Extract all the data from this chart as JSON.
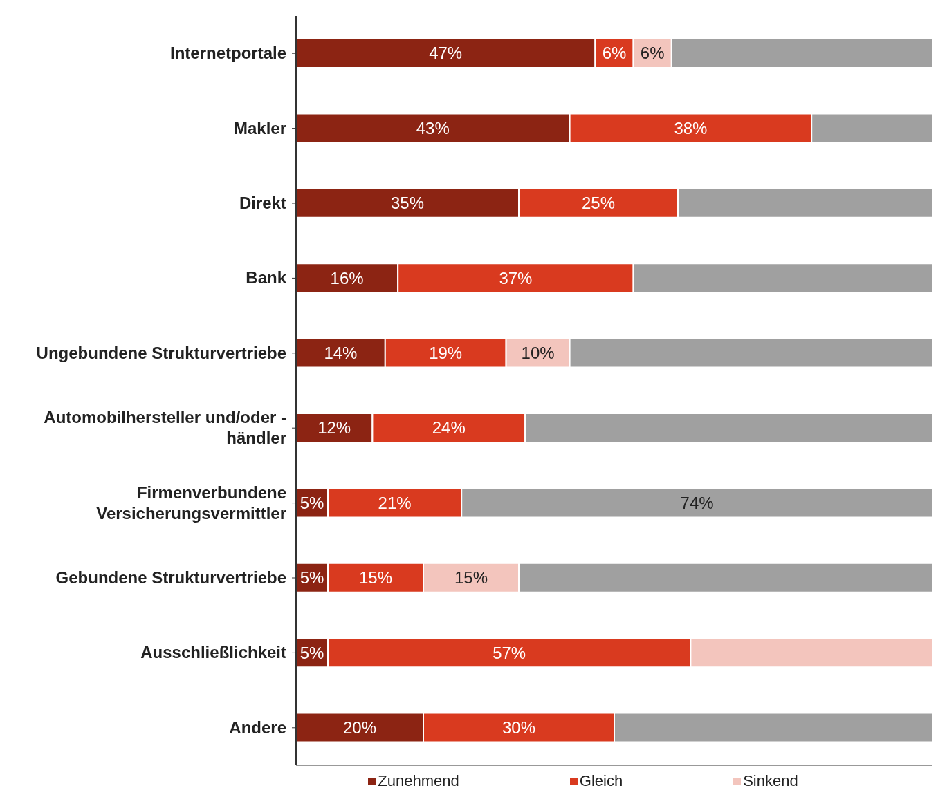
{
  "chart_data": {
    "type": "bar",
    "orientation": "horizontal",
    "stacked": true,
    "categories": [
      "Internetportale",
      "Makler",
      "Direkt",
      "Bank",
      "Ungebundene Strukturvertriebe",
      "Automobilhersteller und/oder - händler",
      "Firmenverbundene Versicherungsvermittler",
      "Gebundene Strukturvertriebe",
      "Ausschließlichkeit",
      "Andere"
    ],
    "xlim": [
      0,
      100
    ],
    "tick_labels": "y",
    "legend": "bottom",
    "grid": false,
    "series": [
      {
        "name": "Zunehmend",
        "color": "#8c2413",
        "values": [
          47,
          43,
          35,
          16,
          14,
          12,
          5,
          5,
          5,
          20
        ],
        "value_labels": [
          "47%",
          "43%",
          "35%",
          "16%",
          "14%",
          "12%",
          "5%",
          "5%",
          "5%",
          "20%"
        ]
      },
      {
        "name": "Gleich",
        "color": "#d93a1f",
        "values": [
          6,
          38,
          25,
          37,
          19,
          24,
          21,
          15,
          57,
          30
        ],
        "value_labels": [
          "6%",
          "38%",
          "25%",
          "37%",
          "19%",
          "24%",
          "21%",
          "15%",
          "57%",
          "30%"
        ]
      },
      {
        "name": "Sinkend",
        "color": "#f3c5bd",
        "values": [
          6,
          null,
          null,
          null,
          10,
          null,
          null,
          15,
          38,
          null
        ],
        "value_labels": [
          "6%",
          null,
          null,
          null,
          "10%",
          null,
          null,
          "15%",
          null,
          null
        ]
      },
      {
        "color": "#a0a0a0",
        "values": [
          41,
          19,
          40,
          47,
          57,
          64,
          74,
          65,
          null,
          50
        ],
        "value_labels": [
          null,
          null,
          null,
          null,
          null,
          null,
          "74%",
          null,
          null,
          null
        ]
      }
    ]
  }
}
